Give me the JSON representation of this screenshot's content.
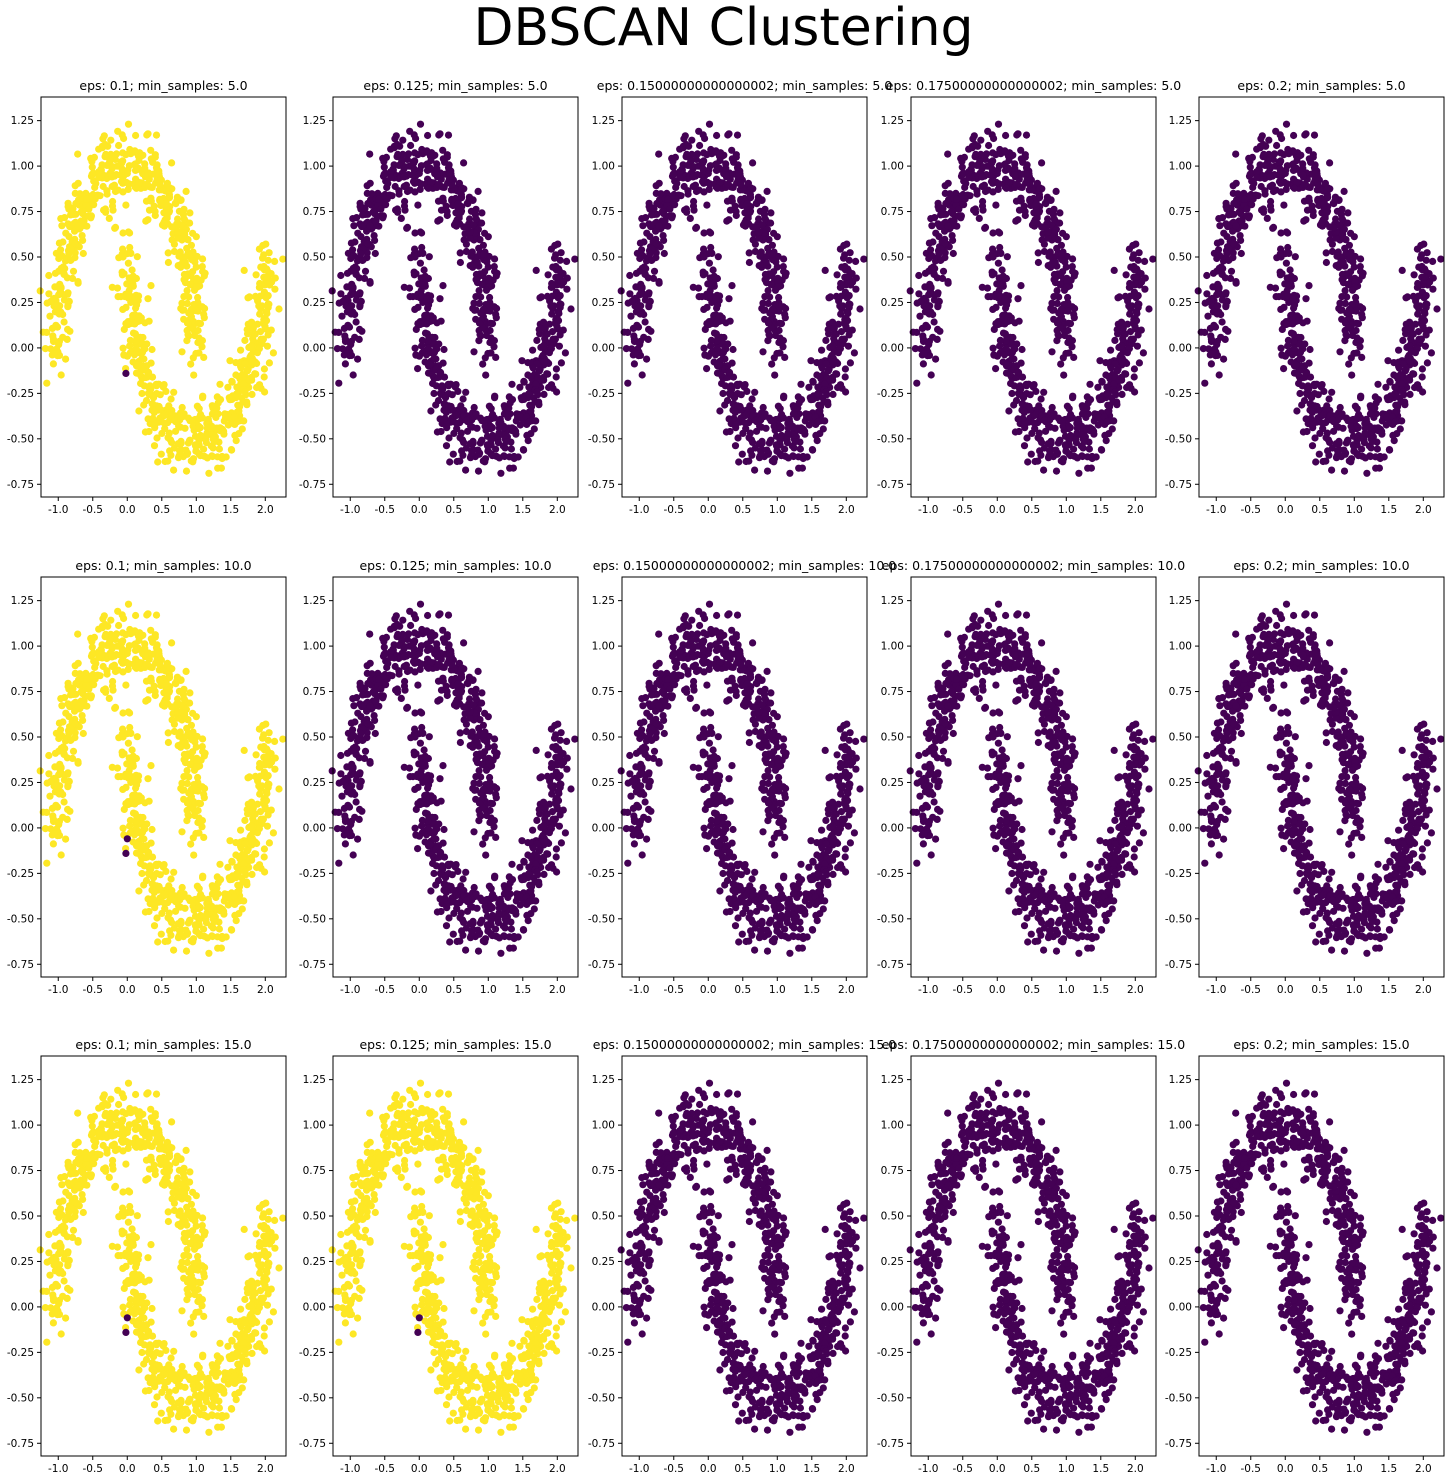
{
  "figure": {
    "title": "DBSCAN Clustering",
    "colors": {
      "cluster": "#440154",
      "noise": "#fde725",
      "axis": "#000000"
    }
  },
  "chart_data": {
    "type": "scatter",
    "dataset": {
      "kind": "two interleaving half-moons",
      "n_points": 1000,
      "noise_std": 0.1
    },
    "x_ticks": [
      "-1.0",
      "-0.5",
      "0.0",
      "0.5",
      "1.0",
      "1.5",
      "2.0"
    ],
    "y_ticks": [
      "-0.75",
      "-0.50",
      "-0.25",
      "0.00",
      "0.25",
      "0.50",
      "0.75",
      "1.00",
      "1.25"
    ],
    "xlim": [
      -1.25,
      2.3
    ],
    "ylim": [
      -0.82,
      1.38
    ],
    "panels": [
      {
        "title": "eps: 0.1; min_samples: 5.0",
        "eps": 0.1,
        "min_samples": 5.0,
        "dominant_label": "noise"
      },
      {
        "title": "eps: 0.125; min_samples: 5.0",
        "eps": 0.125,
        "min_samples": 5.0,
        "dominant_label": "cluster"
      },
      {
        "title": "eps: 0.15000000000000002; min_samples: 5.0",
        "eps": 0.15000000000000002,
        "min_samples": 5.0,
        "dominant_label": "cluster"
      },
      {
        "title": "eps: 0.17500000000000002; min_samples: 5.0",
        "eps": 0.17500000000000002,
        "min_samples": 5.0,
        "dominant_label": "cluster"
      },
      {
        "title": "eps: 0.2; min_samples: 5.0",
        "eps": 0.2,
        "min_samples": 5.0,
        "dominant_label": "cluster"
      },
      {
        "title": "eps: 0.1; min_samples: 10.0",
        "eps": 0.1,
        "min_samples": 10.0,
        "dominant_label": "noise"
      },
      {
        "title": "eps: 0.125; min_samples: 10.0",
        "eps": 0.125,
        "min_samples": 10.0,
        "dominant_label": "cluster"
      },
      {
        "title": "eps: 0.15000000000000002; min_samples: 10.0",
        "eps": 0.15000000000000002,
        "min_samples": 10.0,
        "dominant_label": "cluster"
      },
      {
        "title": "eps: 0.17500000000000002; min_samples: 10.0",
        "eps": 0.17500000000000002,
        "min_samples": 10.0,
        "dominant_label": "cluster"
      },
      {
        "title": "eps: 0.2; min_samples: 10.0",
        "eps": 0.2,
        "min_samples": 10.0,
        "dominant_label": "cluster"
      },
      {
        "title": "eps: 0.1; min_samples: 15.0",
        "eps": 0.1,
        "min_samples": 15.0,
        "dominant_label": "noise"
      },
      {
        "title": "eps: 0.125; min_samples: 15.0",
        "eps": 0.125,
        "min_samples": 15.0,
        "dominant_label": "noise"
      },
      {
        "title": "eps: 0.15000000000000002; min_samples: 15.0",
        "eps": 0.15000000000000002,
        "min_samples": 15.0,
        "dominant_label": "cluster"
      },
      {
        "title": "eps: 0.17500000000000002; min_samples: 15.0",
        "eps": 0.17500000000000002,
        "min_samples": 15.0,
        "dominant_label": "cluster"
      },
      {
        "title": "eps: 0.2; min_samples: 15.0",
        "eps": 0.2,
        "min_samples": 15.0,
        "dominant_label": "cluster"
      }
    ]
  }
}
